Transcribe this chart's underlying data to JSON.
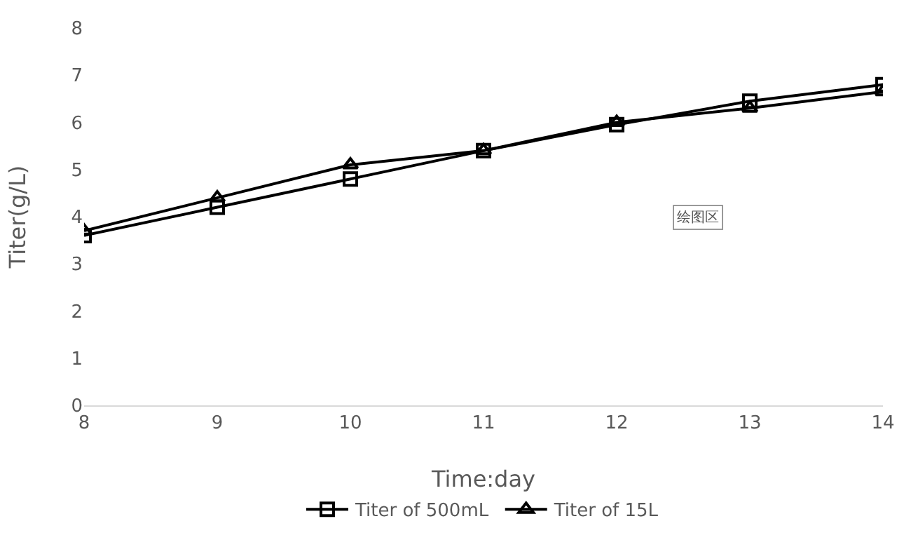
{
  "chart_data": {
    "type": "line",
    "xlabel": "Time:day",
    "ylabel": "Titer(g/L)",
    "x": [
      8,
      9,
      10,
      11,
      12,
      13,
      14
    ],
    "series": [
      {
        "name": "Titer of 500mL",
        "color": "#000000",
        "marker": "square",
        "values": [
          3.6,
          4.2,
          4.8,
          5.4,
          5.95,
          6.45,
          6.8
        ]
      },
      {
        "name": "Titer of 15L",
        "color": "#000000",
        "marker": "triangle",
        "values": [
          3.7,
          4.4,
          5.1,
          5.4,
          6.0,
          6.3,
          6.65
        ]
      }
    ],
    "xlim": [
      8,
      14
    ],
    "xticks": [
      8,
      9,
      10,
      11,
      12,
      13,
      14
    ],
    "ylim": [
      0,
      8
    ],
    "yticks": [
      0,
      1,
      2,
      3,
      4,
      5,
      6,
      7,
      8
    ],
    "grid": false,
    "legend": "bottom",
    "line_style": "solid",
    "annotations": [
      "绘图区"
    ]
  }
}
